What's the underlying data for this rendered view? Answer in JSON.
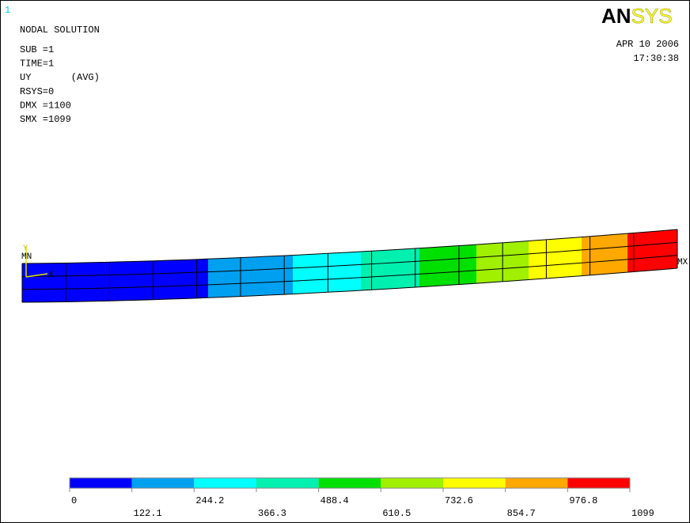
{
  "window_number": "1",
  "info": [
    "NODAL SOLUTION",
    "SUB =1",
    "TIME=1",
    "UY       (AVG)",
    "RSYS=0",
    "DMX =1100",
    "SMX =1099"
  ],
  "logo": {
    "bold": "AN",
    "light": "SYS"
  },
  "date": "APR 10 2006",
  "time": "17:30:38",
  "markers": {
    "min": "MN",
    "max": "MX",
    "axis_y": "Y",
    "axis_x": "X"
  },
  "legend": {
    "labels": [
      "0",
      "122.1",
      "244.2",
      "366.3",
      "488.4",
      "610.5",
      "732.6",
      "854.7",
      "976.8",
      "1099"
    ],
    "colors": [
      "#0000ff",
      "#00a0f0",
      "#00ffff",
      "#00f0b0",
      "#00e000",
      "#a0f000",
      "#ffff00",
      "#ffa800",
      "#ff0000"
    ]
  }
}
